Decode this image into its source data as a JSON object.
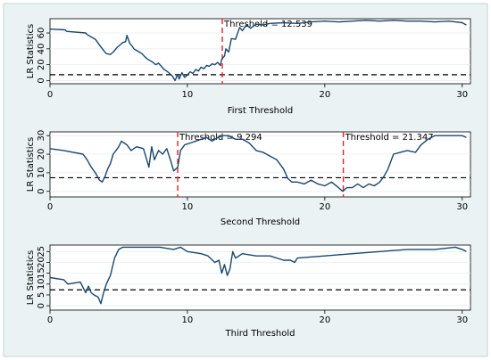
{
  "chart_data": [
    {
      "type": "line",
      "xlabel": "First Threshold",
      "ylabel": "LR Statistics",
      "xlim": [
        0,
        30.6
      ],
      "ylim": [
        -4,
        78
      ],
      "xticks": [
        0,
        10,
        20,
        30
      ],
      "yticks": [
        0,
        20,
        40,
        60
      ],
      "critical_value": 7.35,
      "threshold_lines": [
        {
          "x": 12.539,
          "label": "Threshold = 12.539",
          "color": "#e8202a"
        }
      ],
      "series": [
        {
          "x": [
            0,
            1.1,
            1.2,
            2.6,
            2.7,
            3.3,
            3.6,
            3.9,
            4.1,
            4.4,
            4.6,
            4.9,
            5.1,
            5.3,
            5.5,
            5.6,
            5.8,
            6.0,
            6.1,
            6.3,
            6.5,
            6.7,
            6.9,
            7.1,
            7.3,
            7.5,
            7.7,
            7.9,
            8.1,
            8.3,
            8.5,
            8.7,
            8.9,
            9.0,
            9.1,
            9.3,
            9.4,
            9.6,
            9.8,
            10.0,
            10.2,
            10.4,
            10.6,
            10.8,
            11.0,
            11.2,
            11.4,
            11.6,
            11.8,
            12.0,
            12.2,
            12.4,
            12.5,
            12.7,
            12.8,
            13.0,
            13.2,
            13.5,
            13.8,
            14.0,
            14.3,
            14.6,
            15.0,
            15.5,
            16.0,
            17.0,
            18.0,
            19.0,
            20.0,
            21.0,
            22.0,
            23.0,
            24.0,
            25.0,
            26.0,
            27.0,
            28.0,
            29.0,
            30.0,
            30.3
          ],
          "y": [
            65,
            64,
            62,
            60,
            58,
            52,
            45,
            38,
            34,
            33,
            36,
            42,
            45,
            48,
            49,
            57,
            47,
            43,
            40,
            38,
            36,
            34,
            30,
            27,
            25,
            23,
            20,
            22,
            18,
            14,
            12,
            9,
            6,
            3,
            0,
            8,
            2,
            10,
            4,
            7,
            11,
            9,
            14,
            12,
            17,
            15,
            19,
            18,
            21,
            20,
            23,
            19,
            27,
            31,
            40,
            36,
            53,
            52,
            67,
            63,
            70,
            66,
            71,
            70,
            72,
            73,
            72,
            74,
            75,
            74,
            75,
            76,
            75,
            76,
            75,
            75,
            74,
            75,
            73,
            70
          ]
        }
      ]
    },
    {
      "type": "line",
      "xlabel": "Second Threshold",
      "ylabel": "LR Statistics",
      "xlim": [
        0,
        30.6
      ],
      "ylim": [
        -3,
        32
      ],
      "xticks": [
        0,
        10,
        20,
        30
      ],
      "yticks": [
        0,
        10,
        20,
        30
      ],
      "critical_value": 7.35,
      "threshold_lines": [
        {
          "x": 9.294,
          "label": "Threshold = 9.294",
          "color": "#e8202a"
        },
        {
          "x": 21.347,
          "label": "Threshold = 21.347",
          "color": "#e8202a"
        }
      ],
      "series": [
        {
          "x": [
            0,
            1.0,
            2.4,
            2.7,
            3.0,
            3.3,
            3.6,
            3.8,
            4.0,
            4.2,
            4.4,
            4.6,
            4.8,
            5.0,
            5.2,
            5.4,
            5.6,
            5.9,
            6.3,
            6.8,
            7.2,
            7.4,
            7.6,
            7.9,
            8.2,
            8.5,
            8.8,
            9.0,
            9.3,
            9.5,
            9.8,
            10.2,
            10.6,
            11.0,
            11.4,
            11.8,
            12.2,
            12.6,
            13.0,
            13.5,
            14.0,
            14.5,
            15.0,
            15.5,
            16.0,
            16.5,
            17.0,
            17.3,
            17.6,
            18.0,
            18.5,
            19.0,
            19.5,
            20.0,
            20.5,
            21.0,
            21.3,
            21.6,
            22.0,
            22.4,
            22.8,
            23.2,
            23.6,
            24.0,
            24.3,
            24.6,
            25.0,
            25.5,
            26.0,
            26.6,
            27.0,
            27.5,
            28.0,
            29.0,
            30.0,
            30.3
          ],
          "y": [
            23,
            22,
            20,
            17,
            13,
            10,
            6,
            5,
            8,
            12,
            15,
            20,
            22,
            24,
            27,
            26,
            25,
            22,
            24,
            23,
            13,
            24,
            17,
            22,
            20,
            23,
            16,
            11,
            13,
            22,
            25,
            26,
            27,
            28,
            29,
            27,
            29,
            30,
            30,
            28,
            28,
            26,
            22,
            21,
            19,
            17,
            12,
            7,
            5,
            5,
            4,
            6,
            4,
            3,
            5,
            2,
            0,
            2,
            2,
            4,
            2,
            4,
            3,
            5,
            8,
            12,
            20,
            21,
            22,
            21,
            25,
            28,
            30,
            30,
            30,
            29
          ]
        }
      ]
    },
    {
      "type": "line",
      "xlabel": "Third Threshold",
      "ylabel": "LR Statistics",
      "xlim": [
        0,
        30.6
      ],
      "ylim": [
        -2,
        28
      ],
      "xticks": [
        0,
        10,
        20,
        30
      ],
      "yticks": [
        0,
        5,
        10,
        15,
        20,
        25
      ],
      "ytick_labels": [
        "0",
        "5",
        "10",
        "15",
        "20",
        "25"
      ],
      "critical_value": 7.35,
      "threshold_lines": [],
      "series": [
        {
          "x": [
            0,
            1.0,
            1.3,
            2.2,
            2.6,
            2.8,
            3.0,
            3.2,
            3.5,
            3.7,
            3.9,
            4.1,
            4.4,
            4.7,
            5.0,
            5.3,
            6.0,
            7.0,
            8.0,
            9.0,
            9.5,
            10.0,
            11.0,
            11.5,
            12.0,
            12.3,
            12.5,
            12.7,
            12.9,
            13.1,
            13.3,
            13.5,
            14.0,
            15.0,
            16.0,
            17.0,
            17.5,
            17.8,
            18.0,
            20.0,
            22.0,
            24.0,
            26.0,
            28.0,
            29.5,
            30.0,
            30.3
          ],
          "y": [
            13,
            12,
            10,
            11,
            6,
            9,
            6,
            5,
            4,
            1,
            6,
            10,
            14,
            22,
            26,
            27,
            27,
            27,
            27,
            26,
            27,
            25,
            24,
            23,
            20,
            21,
            15,
            19,
            14,
            17,
            25,
            22,
            24,
            23,
            23,
            21,
            21,
            20,
            22,
            23,
            24,
            25,
            26,
            26,
            27,
            26,
            25
          ]
        }
      ]
    }
  ]
}
